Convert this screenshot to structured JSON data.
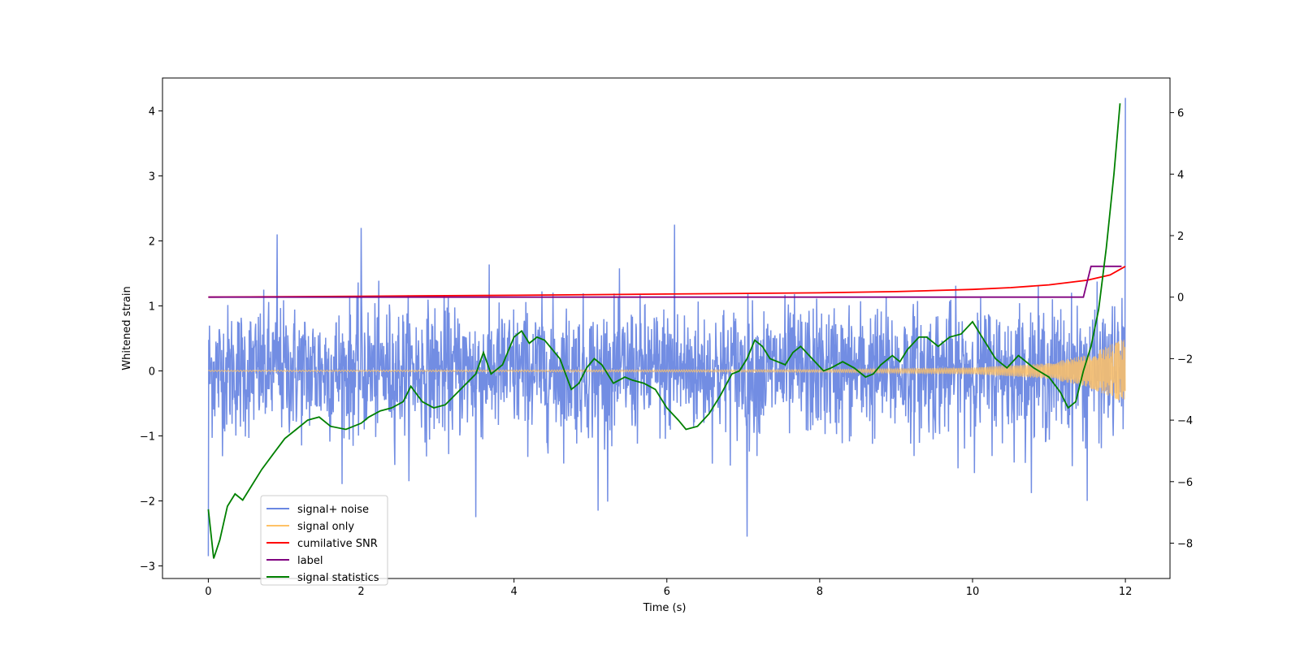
{
  "chart_data": {
    "type": "line",
    "title": "",
    "xlabel": "Time (s)",
    "ylabel": "Whitened strain",
    "y2label": "",
    "xlim": [
      -0.6,
      12.6
    ],
    "ylim": [
      -3.2,
      4.5
    ],
    "y2lim": [
      -9.2,
      7.0
    ],
    "xticks": [
      0,
      2,
      4,
      6,
      8,
      10,
      12
    ],
    "yticks": [
      -3,
      -2,
      -1,
      0,
      1,
      2,
      3,
      4
    ],
    "y2ticks": [
      -8,
      -6,
      -4,
      -2,
      0,
      2,
      4,
      6
    ],
    "legend_position": "lower-left",
    "series": [
      {
        "name": "signal+ noise",
        "axis": "left",
        "color": "#6a87e2",
        "description": "noise-dominated whitened strain, roughly ±1 with spikes near ±2",
        "envelope": {
          "x": [
            0,
            12
          ],
          "ymin": -2.85,
          "ymax": 4.2
        },
        "peaks": [
          {
            "x": 0.9,
            "y": 2.1
          },
          {
            "x": 2.0,
            "y": 2.2
          },
          {
            "x": 3.5,
            "y": -2.25
          },
          {
            "x": 5.1,
            "y": -2.15
          },
          {
            "x": 6.1,
            "y": 2.25
          },
          {
            "x": 7.05,
            "y": -2.55
          },
          {
            "x": 11.5,
            "y": -2.0
          },
          {
            "x": 12.0,
            "y": 4.2
          },
          {
            "x": 0.0,
            "y": -2.85
          }
        ]
      },
      {
        "name": "signal only",
        "axis": "left",
        "color": "#ffc266",
        "description": "chirp signal, amplitude growing toward coalescence",
        "amplitude": {
          "x": [
            0,
            8,
            10,
            11,
            11.5,
            12
          ],
          "y": [
            0.01,
            0.02,
            0.05,
            0.12,
            0.25,
            0.5
          ]
        }
      },
      {
        "name": "cumilative SNR",
        "axis": "right",
        "color": "#ff0000",
        "x": [
          0,
          2,
          4,
          6,
          8,
          9,
          10,
          10.5,
          11,
          11.5,
          11.8,
          12
        ],
        "y": [
          0.0,
          0.03,
          0.06,
          0.1,
          0.14,
          0.18,
          0.25,
          0.31,
          0.4,
          0.55,
          0.72,
          1.0
        ]
      },
      {
        "name": "label",
        "axis": "right",
        "color": "#800080",
        "x": [
          0,
          11.45,
          11.55,
          11.95
        ],
        "y": [
          0.0,
          0.0,
          1.0,
          1.0
        ]
      },
      {
        "name": "signal statistics",
        "axis": "right",
        "color": "#008000",
        "x": [
          0,
          0.07,
          0.15,
          0.25,
          0.35,
          0.45,
          0.55,
          0.7,
          0.85,
          1.0,
          1.15,
          1.3,
          1.45,
          1.6,
          1.8,
          2.0,
          2.1,
          2.25,
          2.4,
          2.55,
          2.65,
          2.8,
          2.95,
          3.1,
          3.3,
          3.5,
          3.6,
          3.7,
          3.85,
          4.0,
          4.1,
          4.2,
          4.3,
          4.4,
          4.6,
          4.75,
          4.85,
          4.95,
          5.05,
          5.15,
          5.3,
          5.45,
          5.55,
          5.7,
          5.85,
          6.0,
          6.15,
          6.25,
          6.4,
          6.55,
          6.7,
          6.85,
          6.95,
          7.05,
          7.15,
          7.25,
          7.35,
          7.45,
          7.55,
          7.65,
          7.75,
          7.9,
          8.05,
          8.15,
          8.3,
          8.45,
          8.6,
          8.7,
          8.8,
          8.95,
          9.05,
          9.15,
          9.3,
          9.4,
          9.55,
          9.7,
          9.85,
          10.0,
          10.15,
          10.3,
          10.45,
          10.6,
          10.8,
          11.0,
          11.15,
          11.25,
          11.35,
          11.45,
          11.55,
          11.65,
          11.75,
          11.85,
          11.93
        ],
        "y": [
          -6.9,
          -8.5,
          -7.9,
          -6.8,
          -6.4,
          -6.6,
          -6.2,
          -5.6,
          -5.1,
          -4.6,
          -4.3,
          -4.0,
          -3.9,
          -4.2,
          -4.3,
          -4.1,
          -3.9,
          -3.7,
          -3.6,
          -3.4,
          -2.9,
          -3.4,
          -3.6,
          -3.5,
          -3.0,
          -2.5,
          -1.8,
          -2.5,
          -2.2,
          -1.3,
          -1.1,
          -1.5,
          -1.3,
          -1.4,
          -2.0,
          -3.0,
          -2.8,
          -2.3,
          -2.0,
          -2.2,
          -2.8,
          -2.6,
          -2.7,
          -2.8,
          -3.0,
          -3.6,
          -4.0,
          -4.3,
          -4.2,
          -3.8,
          -3.2,
          -2.5,
          -2.4,
          -2.0,
          -1.4,
          -1.6,
          -2.0,
          -2.1,
          -2.2,
          -1.8,
          -1.6,
          -2.0,
          -2.4,
          -2.3,
          -2.1,
          -2.3,
          -2.6,
          -2.5,
          -2.2,
          -1.9,
          -2.1,
          -1.7,
          -1.3,
          -1.3,
          -1.6,
          -1.3,
          -1.2,
          -0.8,
          -1.4,
          -2.0,
          -2.3,
          -1.9,
          -2.3,
          -2.6,
          -3.1,
          -3.6,
          -3.4,
          -2.4,
          -1.6,
          -0.4,
          1.6,
          4.0,
          6.3
        ]
      }
    ]
  }
}
